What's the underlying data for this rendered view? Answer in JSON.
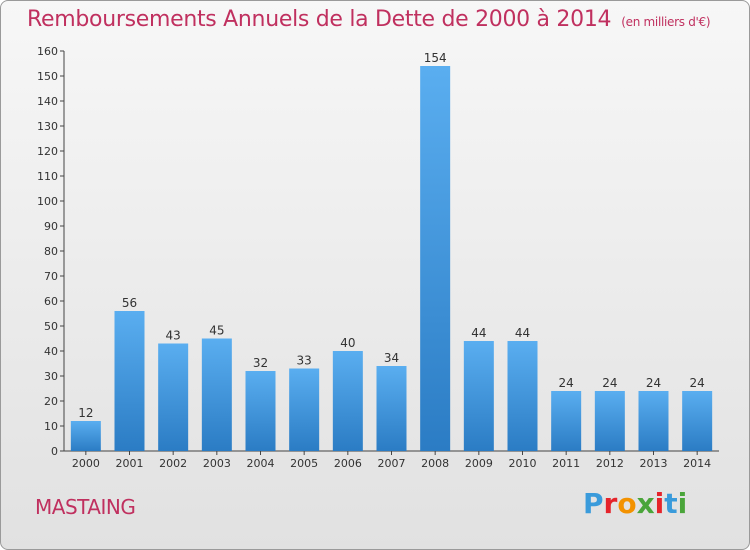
{
  "header": {
    "title": "Remboursements Annuels de la Dette de 2000 à 2014",
    "unit": "(en milliers d'€)"
  },
  "footer": {
    "place": "MASTAING",
    "brand": "Proxiti",
    "brand_colors": [
      "#3a9bdb",
      "#e5242b",
      "#f39200",
      "#4aa53a",
      "#e5242b",
      "#3a9bdb",
      "#4aa53a"
    ]
  },
  "colors": {
    "bar_light": "#5aaef0",
    "bar_dark": "#2b7cc4",
    "accent": "#c0305f"
  },
  "chart_data": {
    "type": "bar",
    "title": "Remboursements Annuels de la Dette de 2000 à 2014",
    "subtitle": "(en milliers d'€)",
    "categories": [
      "2000",
      "2001",
      "2002",
      "2003",
      "2004",
      "2005",
      "2006",
      "2007",
      "2008",
      "2009",
      "2010",
      "2011",
      "2012",
      "2013",
      "2014"
    ],
    "values": [
      12,
      56,
      43,
      45,
      32,
      33,
      40,
      34,
      154,
      44,
      44,
      24,
      24,
      24,
      24
    ],
    "ylim": [
      0,
      160
    ],
    "yticks": [
      0,
      10,
      20,
      30,
      40,
      50,
      60,
      70,
      80,
      90,
      100,
      110,
      120,
      130,
      140,
      150,
      160
    ],
    "grid": false,
    "legend": "none"
  }
}
